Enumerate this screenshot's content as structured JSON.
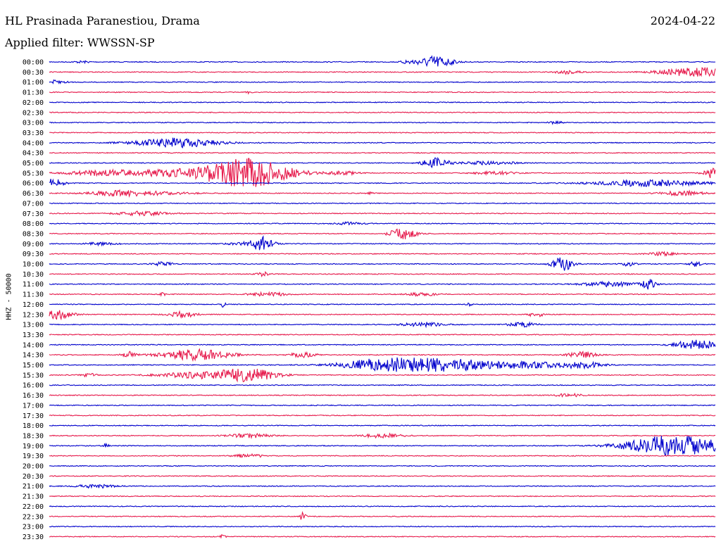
{
  "header": {
    "station": "HL Prasinada Paranestiou, Drama",
    "date": "2024-04-22",
    "filter": "Applied filter: WWSSN-SP"
  },
  "chart_data": {
    "type": "line",
    "title": "HL Prasinada Paranestiou, Drama",
    "ylabel": "HHZ - 50000",
    "grid": false,
    "colors": [
      "#0000cc",
      "#e6194b"
    ],
    "rows": [
      {
        "label": "00:00",
        "events": [
          [
            0.05,
            0.6,
            0.012
          ],
          [
            0.54,
            1.5,
            0.01
          ],
          [
            0.58,
            4,
            0.025
          ]
        ]
      },
      {
        "label": "00:30",
        "events": [
          [
            0.78,
            1.2,
            0.02
          ],
          [
            0.97,
            3,
            0.05
          ]
        ]
      },
      {
        "label": "01:00",
        "events": [
          [
            0.01,
            1.2,
            0.015
          ]
        ]
      },
      {
        "label": "01:30",
        "events": [
          [
            0.3,
            0.8,
            0.004
          ]
        ]
      },
      {
        "label": "02:00",
        "events": []
      },
      {
        "label": "02:30",
        "events": []
      },
      {
        "label": "03:00",
        "events": [
          [
            0.76,
            0.8,
            0.01
          ]
        ]
      },
      {
        "label": "03:30",
        "events": []
      },
      {
        "label": "04:00",
        "events": [
          [
            0.19,
            3,
            0.06
          ]
        ]
      },
      {
        "label": "04:30",
        "events": []
      },
      {
        "label": "05:00",
        "events": [
          [
            0.58,
            3,
            0.02
          ],
          [
            0.66,
            1,
            0.04
          ]
        ]
      },
      {
        "label": "05:30",
        "events": [
          [
            0.08,
            1.2,
            0.05
          ],
          [
            0.22,
            2.5,
            0.12
          ],
          [
            0.3,
            8,
            0.06
          ],
          [
            0.44,
            1.2,
            0.02
          ],
          [
            0.67,
            1,
            0.03
          ],
          [
            1.0,
            4,
            0.015
          ]
        ]
      },
      {
        "label": "06:00",
        "events": [
          [
            0.005,
            3,
            0.015
          ],
          [
            0.9,
            2,
            0.08
          ]
        ]
      },
      {
        "label": "06:30",
        "events": [
          [
            0.1,
            1.3,
            0.04
          ],
          [
            0.15,
            1,
            0.06
          ],
          [
            0.48,
            1.1,
            0.005
          ],
          [
            0.95,
            1.5,
            0.03
          ]
        ]
      },
      {
        "label": "07:00",
        "events": []
      },
      {
        "label": "07:30",
        "events": [
          [
            0.14,
            1.2,
            0.04
          ]
        ]
      },
      {
        "label": "08:00",
        "events": [
          [
            0.45,
            0.8,
            0.02
          ]
        ]
      },
      {
        "label": "08:30",
        "events": [
          [
            0.53,
            3.5,
            0.02
          ]
        ]
      },
      {
        "label": "09:00",
        "events": [
          [
            0.08,
            1.2,
            0.02
          ],
          [
            0.3,
            1,
            0.03
          ],
          [
            0.32,
            4,
            0.015
          ]
        ]
      },
      {
        "label": "09:30",
        "events": [
          [
            0.92,
            1,
            0.02
          ]
        ]
      },
      {
        "label": "10:00",
        "events": [
          [
            0.17,
            1.2,
            0.015
          ],
          [
            0.77,
            5,
            0.015
          ],
          [
            0.87,
            1.5,
            0.01
          ],
          [
            0.97,
            1.5,
            0.01
          ]
        ]
      },
      {
        "label": "10:30",
        "events": [
          [
            0.32,
            1.3,
            0.01
          ]
        ]
      },
      {
        "label": "11:00",
        "events": [
          [
            0.84,
            1.5,
            0.04
          ],
          [
            0.9,
            3,
            0.01
          ]
        ]
      },
      {
        "label": "11:30",
        "events": [
          [
            0.17,
            1.2,
            0.004
          ],
          [
            0.33,
            1.2,
            0.03
          ],
          [
            0.56,
            1.1,
            0.02
          ]
        ]
      },
      {
        "label": "12:00",
        "events": [
          [
            0.26,
            2,
            0.004
          ],
          [
            0.63,
            1.2,
            0.004
          ]
        ]
      },
      {
        "label": "12:30",
        "events": [
          [
            0.015,
            3,
            0.02
          ],
          [
            0.2,
            2,
            0.02
          ],
          [
            0.73,
            2.2,
            0.01
          ]
        ]
      },
      {
        "label": "13:00",
        "events": [
          [
            0.56,
            1.4,
            0.03
          ],
          [
            0.71,
            1.4,
            0.02
          ]
        ]
      },
      {
        "label": "13:30",
        "events": []
      },
      {
        "label": "14:00",
        "events": [
          [
            0.97,
            3,
            0.03
          ]
        ]
      },
      {
        "label": "14:30",
        "events": [
          [
            0.12,
            2,
            0.01
          ],
          [
            0.22,
            3.5,
            0.05
          ],
          [
            0.38,
            1.5,
            0.02
          ],
          [
            0.8,
            2,
            0.02
          ]
        ]
      },
      {
        "label": "15:00",
        "events": [
          [
            0.5,
            4,
            0.06
          ],
          [
            0.6,
            4,
            0.07
          ],
          [
            0.72,
            2,
            0.05
          ],
          [
            0.8,
            2,
            0.03
          ]
        ]
      },
      {
        "label": "15:30",
        "events": [
          [
            0.06,
            1.2,
            0.01
          ],
          [
            0.23,
            2,
            0.06
          ],
          [
            0.3,
            4,
            0.04
          ]
        ]
      },
      {
        "label": "16:00",
        "events": []
      },
      {
        "label": "16:30",
        "events": [
          [
            0.78,
            1,
            0.02
          ]
        ]
      },
      {
        "label": "17:00",
        "events": []
      },
      {
        "label": "17:30",
        "events": []
      },
      {
        "label": "18:00",
        "events": []
      },
      {
        "label": "18:30",
        "events": [
          [
            0.3,
            1.3,
            0.03
          ],
          [
            0.5,
            1.3,
            0.03
          ]
        ]
      },
      {
        "label": "19:00",
        "events": [
          [
            0.085,
            1.5,
            0.004
          ],
          [
            0.94,
            7,
            0.07
          ]
        ]
      },
      {
        "label": "19:30",
        "events": [
          [
            0.3,
            1.3,
            0.02
          ]
        ]
      },
      {
        "label": "20:00",
        "events": []
      },
      {
        "label": "20:30",
        "events": []
      },
      {
        "label": "21:00",
        "events": [
          [
            0.07,
            1,
            0.03
          ]
        ]
      },
      {
        "label": "21:30",
        "events": []
      },
      {
        "label": "22:00",
        "events": []
      },
      {
        "label": "22:30",
        "events": [
          [
            0.38,
            2.5,
            0.005
          ]
        ]
      },
      {
        "label": "23:00",
        "events": []
      },
      {
        "label": "23:30",
        "events": [
          [
            0.26,
            1.2,
            0.004
          ]
        ]
      }
    ]
  }
}
